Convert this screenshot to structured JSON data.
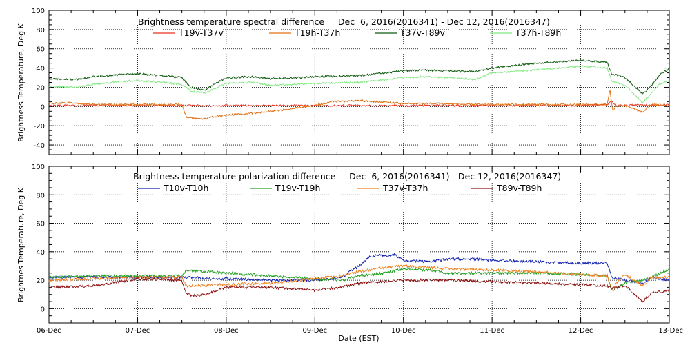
{
  "chart_data": [
    {
      "type": "line",
      "title": "Brightness temperature spectral difference     Dec  6, 2016(2016341) - Dec 12, 2016(2016347)",
      "xlabel": "",
      "ylabel": "Brightness Temperature, Deg K",
      "xlim": [
        "06-Dec",
        "13-Dec"
      ],
      "ylim": [
        -50,
        100
      ],
      "yticks": [
        -40,
        -20,
        0,
        20,
        40,
        60,
        80,
        100
      ],
      "grid": true,
      "legend_position": "top",
      "series": [
        {
          "name": "T19v-T37v",
          "color": "#e8321e",
          "x": [
            0,
            0.5,
            1,
            1.5,
            2,
            2.5,
            3,
            3.5,
            4,
            4.5,
            5,
            5.5,
            6,
            6.3,
            6.35,
            6.4,
            6.5,
            6.7,
            6.8,
            7
          ],
          "y": [
            1,
            1,
            1,
            1,
            1,
            1,
            1,
            1,
            1,
            1,
            1,
            1,
            1,
            2,
            6,
            1,
            1,
            2,
            1,
            2
          ]
        },
        {
          "name": "T19h-T37h",
          "color": "#e07010",
          "x": [
            0,
            0.2,
            0.5,
            1,
            1.5,
            1.55,
            1.7,
            2,
            2.3,
            2.6,
            3,
            3.2,
            3.5,
            4,
            4.5,
            5,
            5.5,
            6,
            6.3,
            6.33,
            6.36,
            6.4,
            6.5,
            6.7,
            6.8,
            7
          ],
          "y": [
            3,
            4,
            2,
            2,
            2,
            -11,
            -13,
            -9,
            -7,
            -4,
            1,
            5,
            6,
            3,
            3,
            2,
            2,
            2,
            2,
            17,
            -5,
            0,
            1,
            -6,
            2,
            1
          ]
        },
        {
          "name": "T37v-T89v",
          "color": "#0f5a0f",
          "x": [
            0,
            0.3,
            0.5,
            0.8,
            1,
            1.3,
            1.5,
            1.6,
            1.75,
            1.85,
            2,
            2.3,
            2.5,
            2.8,
            3,
            3.5,
            4,
            4.2,
            4.5,
            4.8,
            5,
            5.5,
            6,
            6.3,
            6.35,
            6.5,
            6.7,
            6.8,
            6.9,
            7
          ],
          "y": [
            29,
            28,
            31,
            33,
            34,
            32,
            30,
            20,
            17,
            22,
            30,
            31,
            29,
            30,
            31,
            32,
            37,
            38,
            37,
            36,
            40,
            45,
            48,
            46,
            34,
            30,
            13,
            22,
            34,
            39
          ]
        },
        {
          "name": "T37h-T89h",
          "color": "#80e880",
          "x": [
            0,
            0.3,
            0.5,
            0.8,
            1,
            1.3,
            1.5,
            1.6,
            1.75,
            1.85,
            2,
            2.3,
            2.5,
            2.8,
            3,
            3.5,
            4,
            4.2,
            4.5,
            4.8,
            5,
            5.5,
            6,
            6.3,
            6.35,
            6.5,
            6.7,
            6.8,
            6.9,
            7
          ],
          "y": [
            21,
            20,
            23,
            26,
            27,
            25,
            23,
            16,
            14,
            18,
            24,
            25,
            22,
            23,
            24,
            25,
            30,
            31,
            30,
            28,
            35,
            38,
            42,
            40,
            26,
            22,
            4,
            14,
            24,
            27
          ]
        }
      ]
    },
    {
      "type": "line",
      "title": "Brightness temperature polarization difference     Dec  6, 2016(2016341) - Dec 12, 2016(2016347)",
      "xlabel": "Date (EST)",
      "ylabel": "Brightnes Temperature, Deg K",
      "xlim": [
        "06-Dec",
        "13-Dec"
      ],
      "ylim": [
        -10,
        100
      ],
      "yticks": [
        0,
        20,
        40,
        60,
        80,
        100
      ],
      "xtick_labels": [
        "06-Dec",
        "07-Dec",
        "08-Dec",
        "09-Dec",
        "10-Dec",
        "11-Dec",
        "12-Dec",
        "13-Dec"
      ],
      "grid": true,
      "legend_position": "top",
      "series": [
        {
          "name": "T10v-T10h",
          "color": "#1020b0",
          "x": [
            0,
            0.5,
            1,
            1.5,
            2,
            2.5,
            3,
            3.3,
            3.5,
            3.6,
            3.7,
            3.8,
            3.9,
            4,
            4.3,
            4.4,
            4.5,
            4.8,
            5,
            5.5,
            6,
            6.3,
            6.35,
            6.5,
            6.7,
            6.8,
            7
          ],
          "y": [
            22,
            22,
            22,
            22,
            21,
            20,
            20,
            22,
            30,
            36,
            38,
            37,
            38,
            34,
            33,
            34,
            35,
            35,
            34,
            33,
            32,
            32,
            22,
            20,
            18,
            22,
            20
          ]
        },
        {
          "name": "T19v-T19h",
          "color": "#20a020",
          "x": [
            0,
            0.5,
            1,
            1.5,
            1.55,
            2,
            2.5,
            3,
            3.3,
            3.5,
            3.8,
            4,
            4.3,
            4.5,
            5,
            5.5,
            6,
            6.3,
            6.35,
            6.5,
            6.7,
            6.8,
            7
          ],
          "y": [
            22,
            23,
            23,
            23,
            27,
            25,
            23,
            21,
            20,
            23,
            25,
            28,
            27,
            25,
            25,
            25,
            24,
            23,
            12,
            18,
            20,
            22,
            28
          ]
        },
        {
          "name": "T37v-T37h",
          "color": "#f08020",
          "x": [
            0,
            0.5,
            1,
            1.5,
            1.55,
            2,
            2.5,
            3,
            3.3,
            3.5,
            3.8,
            4,
            4.3,
            4.5,
            5,
            5.5,
            6,
            6.3,
            6.35,
            6.5,
            6.7,
            6.8,
            7
          ],
          "y": [
            20,
            21,
            22,
            22,
            16,
            17,
            18,
            21,
            23,
            26,
            29,
            30,
            29,
            28,
            27,
            26,
            24,
            23,
            14,
            24,
            16,
            22,
            22
          ]
        },
        {
          "name": "T89v-T89h",
          "color": "#8b1010",
          "x": [
            0,
            0.5,
            1,
            1.5,
            1.55,
            1.7,
            2,
            2.5,
            3,
            3.3,
            3.5,
            4,
            4.5,
            5,
            5.5,
            6,
            6.3,
            6.35,
            6.5,
            6.7,
            6.8,
            7
          ],
          "y": [
            15,
            16,
            21,
            20,
            10,
            9,
            15,
            15,
            13,
            15,
            18,
            20,
            20,
            19,
            18,
            17,
            16,
            14,
            16,
            5,
            11,
            13
          ]
        }
      ]
    }
  ]
}
